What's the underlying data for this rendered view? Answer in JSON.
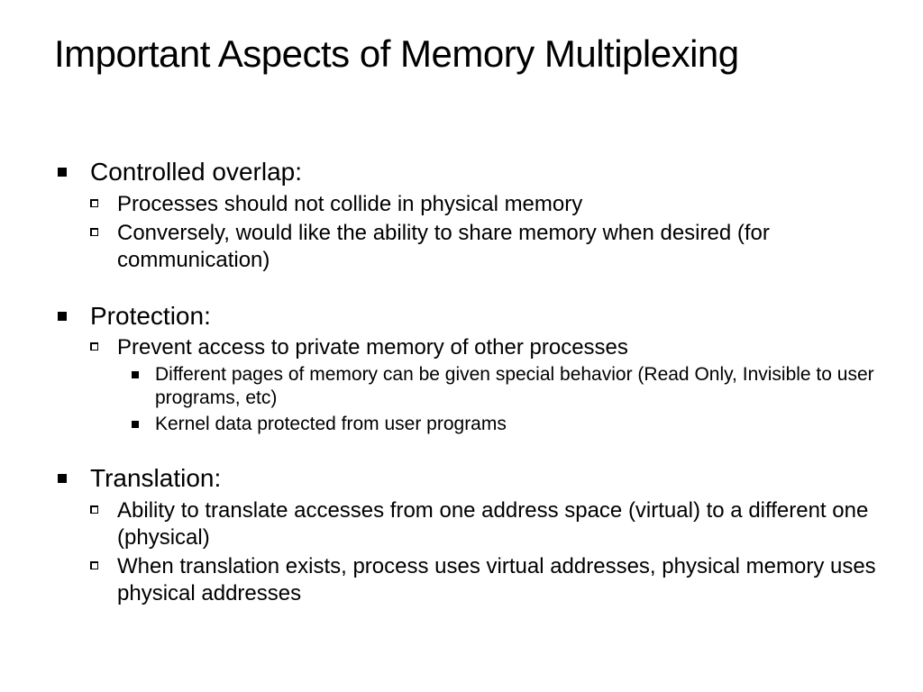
{
  "slide": {
    "title": "Important Aspects of Memory Multiplexing",
    "title_fontsize": 42,
    "background_color": "#ffffff",
    "text_color": "#000000",
    "bullets": [
      {
        "label": "Controlled overlap:",
        "children": [
          {
            "text": "Processes should not collide in physical memory"
          },
          {
            "text": "Conversely, would like the ability to share memory when desired (for communication)"
          }
        ]
      },
      {
        "label": "Protection:",
        "children": [
          {
            "text": "Prevent access to private memory of other processes",
            "children": [
              {
                "text": "Different pages of memory can be given special behavior (Read Only, Invisible to user programs, etc)"
              },
              {
                "text": "Kernel data protected from user programs"
              }
            ]
          }
        ]
      },
      {
        "label": "Translation:",
        "children": [
          {
            "text": "Ability to translate accesses from one address space (virtual) to a different one (physical)"
          },
          {
            "text": "When translation exists, process uses virtual addresses, physical memory uses physical addresses"
          }
        ]
      }
    ],
    "fontsizes": {
      "lvl1": 28,
      "lvl2": 24,
      "lvl3": 21
    },
    "bullet_styles": {
      "lvl1": "filled-square",
      "lvl2": "shadowed-square-outline",
      "lvl3": "filled-square-small"
    }
  }
}
